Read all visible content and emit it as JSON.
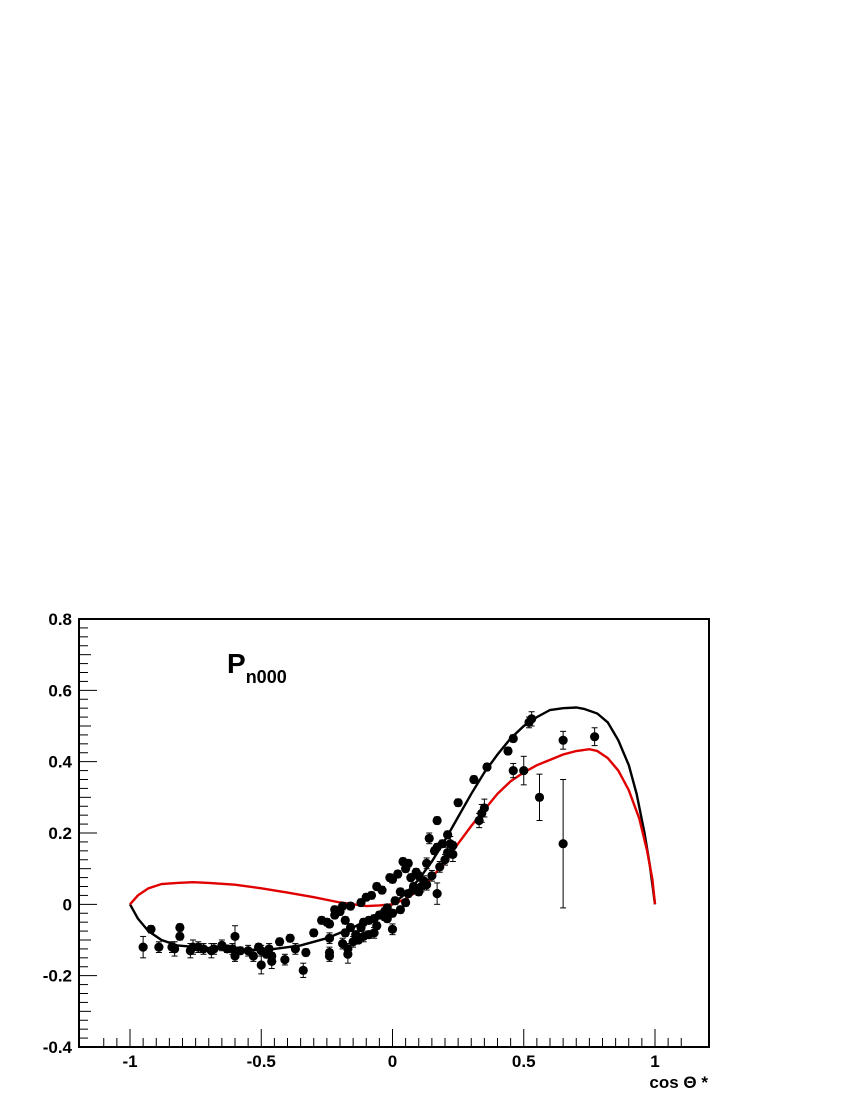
{
  "chart_data": {
    "type": "scatter",
    "title": "P",
    "title_subscript": "n000",
    "xlabel": "cos Θ *",
    "ylabel": "",
    "xlim": [
      -1.2,
      1.2
    ],
    "ylim": [
      -0.4,
      0.8
    ],
    "grid": false,
    "x_ticks": [
      -1,
      -0.5,
      0,
      0.5,
      1
    ],
    "x_tick_labels": [
      "-1",
      "-0.5",
      "0",
      "0.5",
      "1"
    ],
    "y_ticks": [
      -0.4,
      -0.2,
      0,
      0.2,
      0.4,
      0.6,
      0.8
    ],
    "y_tick_labels": [
      "-0.4",
      "-0.2",
      "0",
      "0.2",
      "0.4",
      "0.6",
      "0.8"
    ],
    "colors": {
      "data": "#000000",
      "curve_black": "#000000",
      "curve_red": "#e00000"
    },
    "series": [
      {
        "type": "scatter-errorbar",
        "points": [
          [
            -0.95,
            -0.12,
            0.03
          ],
          [
            -0.92,
            -0.07,
            0.01
          ],
          [
            -0.89,
            -0.12,
            0.015
          ],
          [
            -0.84,
            -0.12,
            0.015
          ],
          [
            -0.83,
            -0.125,
            0.02
          ],
          [
            -0.81,
            -0.065,
            0.01
          ],
          [
            -0.81,
            -0.09,
            0.01
          ],
          [
            -0.77,
            -0.13,
            0.02
          ],
          [
            -0.76,
            -0.12,
            0.02
          ],
          [
            -0.74,
            -0.12,
            0.015
          ],
          [
            -0.72,
            -0.125,
            0.015
          ],
          [
            -0.69,
            -0.13,
            0.02
          ],
          [
            -0.68,
            -0.125,
            0.015
          ],
          [
            -0.65,
            -0.115,
            0.015
          ],
          [
            -0.63,
            -0.125,
            0.01
          ],
          [
            -0.61,
            -0.125,
            0.015
          ],
          [
            -0.6,
            -0.09,
            0.03
          ],
          [
            -0.6,
            -0.145,
            0.015
          ],
          [
            -0.58,
            -0.13,
            0.01
          ],
          [
            -0.55,
            -0.13,
            0.015
          ],
          [
            -0.53,
            -0.145,
            0.015
          ],
          [
            -0.51,
            -0.12,
            0.01
          ],
          [
            -0.5,
            -0.13,
            0.015
          ],
          [
            -0.5,
            -0.17,
            0.025
          ],
          [
            -0.48,
            -0.14,
            0.01
          ],
          [
            -0.47,
            -0.125,
            0.015
          ],
          [
            -0.46,
            -0.145,
            0.01
          ],
          [
            -0.46,
            -0.16,
            0.02
          ],
          [
            -0.43,
            -0.105,
            0.01
          ],
          [
            -0.41,
            -0.155,
            0.015
          ],
          [
            -0.39,
            -0.095,
            0.01
          ],
          [
            -0.37,
            -0.125,
            0.015
          ],
          [
            -0.34,
            -0.185,
            0.02
          ],
          [
            -0.33,
            -0.135,
            0.01
          ],
          [
            -0.3,
            -0.08,
            0.01
          ],
          [
            -0.27,
            -0.045,
            0.01
          ],
          [
            -0.25,
            -0.05,
            0.01
          ],
          [
            -0.24,
            -0.055,
            0.01
          ],
          [
            -0.24,
            -0.095,
            0.015
          ],
          [
            -0.24,
            -0.135,
            0.015
          ],
          [
            -0.24,
            -0.145,
            0.015
          ],
          [
            -0.22,
            -0.03,
            0.01
          ],
          [
            -0.22,
            -0.015,
            0.01
          ],
          [
            -0.2,
            -0.02,
            0.01
          ],
          [
            -0.19,
            -0.11,
            0.015
          ],
          [
            -0.19,
            -0.005,
            0.01
          ],
          [
            -0.18,
            -0.045,
            0.01
          ],
          [
            -0.18,
            -0.08,
            0.01
          ],
          [
            -0.17,
            -0.125,
            0.015
          ],
          [
            -0.17,
            -0.14,
            0.025
          ],
          [
            -0.16,
            -0.005,
            0.01
          ],
          [
            -0.16,
            -0.065,
            0.01
          ],
          [
            -0.15,
            -0.105,
            0.015
          ],
          [
            -0.14,
            -0.085,
            0.01
          ],
          [
            -0.13,
            -0.1,
            0.01
          ],
          [
            -0.12,
            -0.065,
            0.01
          ],
          [
            -0.12,
            0.005,
            0.01
          ],
          [
            -0.11,
            -0.05,
            0.01
          ],
          [
            -0.11,
            -0.09,
            0.015
          ],
          [
            -0.1,
            0.02,
            0.01
          ],
          [
            -0.09,
            -0.045,
            0.01
          ],
          [
            -0.09,
            -0.085,
            0.01
          ],
          [
            -0.08,
            0.025,
            0.01
          ],
          [
            -0.07,
            -0.04,
            0.01
          ],
          [
            -0.07,
            -0.08,
            0.015
          ],
          [
            -0.06,
            0.05,
            0.01
          ],
          [
            -0.06,
            -0.06,
            0.01
          ],
          [
            -0.05,
            -0.03,
            0.01
          ],
          [
            -0.04,
            0.04,
            0.01
          ],
          [
            -0.03,
            -0.02,
            0.01
          ],
          [
            -0.03,
            -0.035,
            0.01
          ],
          [
            -0.02,
            -0.01,
            0.01
          ],
          [
            -0.02,
            -0.04,
            0.01
          ],
          [
            -0.01,
            0.075,
            0.01
          ],
          [
            0.0,
            -0.025,
            0.01
          ],
          [
            0.0,
            0.07,
            0.01
          ],
          [
            0.0,
            -0.07,
            0.015
          ],
          [
            0.01,
            0.01,
            0.01
          ],
          [
            0.02,
            0.085,
            0.01
          ],
          [
            0.03,
            0.035,
            0.01
          ],
          [
            0.03,
            -0.015,
            0.01
          ],
          [
            0.04,
            0.12,
            0.01
          ],
          [
            0.05,
            0.1,
            0.01
          ],
          [
            0.05,
            0.005,
            0.01
          ],
          [
            0.06,
            0.115,
            0.01
          ],
          [
            0.06,
            0.03,
            0.01
          ],
          [
            0.07,
            0.075,
            0.01
          ],
          [
            0.08,
            0.05,
            0.01
          ],
          [
            0.08,
            0.04,
            0.01
          ],
          [
            0.09,
            0.09,
            0.01
          ],
          [
            0.1,
            0.035,
            0.01
          ],
          [
            0.1,
            0.08,
            0.01
          ],
          [
            0.11,
            0.05,
            0.015
          ],
          [
            0.12,
            0.065,
            0.015
          ],
          [
            0.13,
            0.055,
            0.015
          ],
          [
            0.13,
            0.115,
            0.015
          ],
          [
            0.14,
            0.185,
            0.015
          ],
          [
            0.15,
            0.08,
            0.015
          ],
          [
            0.16,
            0.15,
            0.01
          ],
          [
            0.17,
            0.16,
            0.01
          ],
          [
            0.17,
            0.235,
            0.01
          ],
          [
            0.17,
            0.03,
            0.03
          ],
          [
            0.18,
            0.105,
            0.015
          ],
          [
            0.19,
            0.17,
            0.01
          ],
          [
            0.2,
            0.125,
            0.015
          ],
          [
            0.21,
            0.145,
            0.015
          ],
          [
            0.21,
            0.195,
            0.01
          ],
          [
            0.22,
            0.17,
            0.02
          ],
          [
            0.23,
            0.165,
            0.01
          ],
          [
            0.23,
            0.14,
            0.02
          ],
          [
            0.25,
            0.285,
            0.01
          ],
          [
            0.31,
            0.35,
            0.01
          ],
          [
            0.33,
            0.235,
            0.02
          ],
          [
            0.34,
            0.255,
            0.025
          ],
          [
            0.35,
            0.27,
            0.025
          ],
          [
            0.36,
            0.385,
            0.01
          ],
          [
            0.44,
            0.43,
            0.01
          ],
          [
            0.46,
            0.465,
            0.01
          ],
          [
            0.46,
            0.375,
            0.02
          ],
          [
            0.5,
            0.375,
            0.04
          ],
          [
            0.52,
            0.51,
            0.015
          ],
          [
            0.53,
            0.52,
            0.02
          ],
          [
            0.56,
            0.3,
            0.065
          ],
          [
            0.65,
            0.46,
            0.025
          ],
          [
            0.65,
            0.17,
            0.18
          ],
          [
            0.77,
            0.47,
            0.025
          ]
        ]
      },
      {
        "type": "line",
        "color": "#000000",
        "points": [
          [
            -1.0,
            0.0
          ],
          [
            -0.97,
            -0.04
          ],
          [
            -0.93,
            -0.075
          ],
          [
            -0.88,
            -0.1
          ],
          [
            -0.82,
            -0.115
          ],
          [
            -0.75,
            -0.12
          ],
          [
            -0.65,
            -0.125
          ],
          [
            -0.55,
            -0.128
          ],
          [
            -0.45,
            -0.125
          ],
          [
            -0.35,
            -0.115
          ],
          [
            -0.25,
            -0.095
          ],
          [
            -0.15,
            -0.065
          ],
          [
            -0.05,
            -0.025
          ],
          [
            0.0,
            0.0
          ],
          [
            0.05,
            0.03
          ],
          [
            0.1,
            0.07
          ],
          [
            0.15,
            0.12
          ],
          [
            0.2,
            0.18
          ],
          [
            0.25,
            0.245
          ],
          [
            0.3,
            0.31
          ],
          [
            0.35,
            0.37
          ],
          [
            0.4,
            0.42
          ],
          [
            0.45,
            0.465
          ],
          [
            0.5,
            0.5
          ],
          [
            0.55,
            0.525
          ],
          [
            0.6,
            0.545
          ],
          [
            0.65,
            0.55
          ],
          [
            0.7,
            0.552
          ],
          [
            0.73,
            0.548
          ],
          [
            0.78,
            0.535
          ],
          [
            0.82,
            0.51
          ],
          [
            0.86,
            0.46
          ],
          [
            0.9,
            0.39
          ],
          [
            0.93,
            0.31
          ],
          [
            0.96,
            0.2
          ],
          [
            0.98,
            0.11
          ],
          [
            1.0,
            0.0
          ]
        ]
      },
      {
        "type": "line",
        "color": "#e00000",
        "points": [
          [
            -1.0,
            0.0
          ],
          [
            -0.97,
            0.025
          ],
          [
            -0.93,
            0.045
          ],
          [
            -0.88,
            0.057
          ],
          [
            -0.82,
            0.06
          ],
          [
            -0.76,
            0.062
          ],
          [
            -0.7,
            0.06
          ],
          [
            -0.6,
            0.055
          ],
          [
            -0.5,
            0.045
          ],
          [
            -0.4,
            0.033
          ],
          [
            -0.3,
            0.02
          ],
          [
            -0.2,
            0.005
          ],
          [
            -0.1,
            -0.005
          ],
          [
            -0.05,
            -0.003
          ],
          [
            0.0,
            0.0
          ],
          [
            0.05,
            0.015
          ],
          [
            0.1,
            0.04
          ],
          [
            0.15,
            0.075
          ],
          [
            0.2,
            0.12
          ],
          [
            0.25,
            0.17
          ],
          [
            0.3,
            0.22
          ],
          [
            0.35,
            0.265
          ],
          [
            0.4,
            0.31
          ],
          [
            0.45,
            0.345
          ],
          [
            0.5,
            0.37
          ],
          [
            0.55,
            0.39
          ],
          [
            0.6,
            0.405
          ],
          [
            0.65,
            0.42
          ],
          [
            0.7,
            0.43
          ],
          [
            0.75,
            0.435
          ],
          [
            0.78,
            0.43
          ],
          [
            0.82,
            0.41
          ],
          [
            0.86,
            0.375
          ],
          [
            0.9,
            0.32
          ],
          [
            0.94,
            0.24
          ],
          [
            0.97,
            0.15
          ],
          [
            0.99,
            0.07
          ],
          [
            1.0,
            0.0
          ]
        ]
      }
    ]
  }
}
